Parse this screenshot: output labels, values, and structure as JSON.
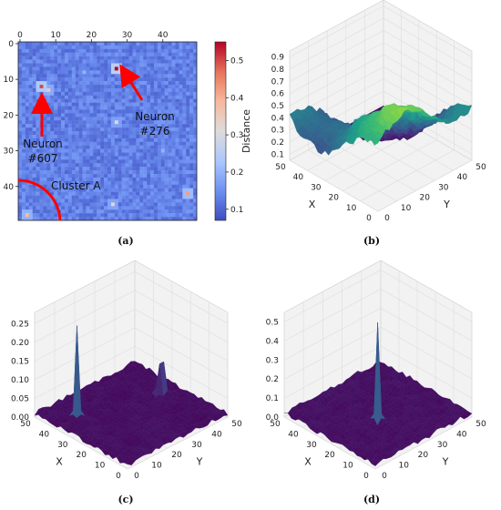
{
  "chart_data": [
    {
      "panel": "(a)",
      "type": "heatmap",
      "x_ticks": [
        "0",
        "10",
        "20",
        "30",
        "40"
      ],
      "y_ticks": [
        "0",
        "10",
        "20",
        "30",
        "40"
      ],
      "grid_size": 50,
      "colorbar": {
        "label": "Distance",
        "ticks": [
          "0.1",
          "0.2",
          "0.3",
          "0.4",
          "0.5"
        ],
        "range": [
          0.07,
          0.55
        ],
        "colormap": [
          "#3b4cc0",
          "#6f92f3",
          "#aac7fd",
          "#dddcdc",
          "#f7b89c",
          "#e7745b",
          "#b40426"
        ]
      },
      "highlights": [
        {
          "x": 27,
          "y": 7,
          "value": 0.55
        },
        {
          "x": 6,
          "y": 12,
          "value": 0.5
        },
        {
          "x": 8,
          "y": 13,
          "value": 0.35
        },
        {
          "x": 27,
          "y": 22,
          "value": 0.3
        },
        {
          "x": 47,
          "y": 42,
          "value": 0.42
        },
        {
          "x": 26,
          "y": 45,
          "value": 0.32
        },
        {
          "x": 2,
          "y": 48,
          "value": 0.38
        },
        {
          "x": 40,
          "y": 30,
          "value": 0.2
        },
        {
          "x": 18,
          "y": 8,
          "value": 0.2
        }
      ],
      "annotations": [
        {
          "text_lines": [
            "Neuron",
            "#607"
          ],
          "target": [
            6,
            12
          ]
        },
        {
          "text_lines": [
            "Neuron",
            "#276"
          ],
          "target": [
            27,
            7
          ]
        },
        {
          "text_lines": [
            "Cluster A"
          ],
          "target": [
            0,
            50
          ]
        }
      ],
      "arrow_color": "#ff0000"
    },
    {
      "panel": "(b)",
      "type": "surface",
      "x_label": "X",
      "y_label": "Y",
      "x_ticks": [
        "0",
        "10",
        "20",
        "30",
        "40",
        "50"
      ],
      "y_ticks": [
        "0",
        "10",
        "20",
        "30",
        "40",
        "50"
      ],
      "z_ticks": [
        "0.1",
        "0.2",
        "0.3",
        "0.4",
        "0.5",
        "0.6",
        "0.7",
        "0.8",
        "0.9"
      ],
      "z_range": [
        0.05,
        0.95
      ],
      "colormap": "viridis"
    },
    {
      "panel": "(c)",
      "type": "surface",
      "x_label": "X",
      "y_label": "Y",
      "x_ticks": [
        "0",
        "10",
        "20",
        "30",
        "40",
        "50"
      ],
      "y_ticks": [
        "0",
        "10",
        "20",
        "30",
        "40",
        "50"
      ],
      "z_ticks": [
        "0.00",
        "0.05",
        "0.10",
        "0.15",
        "0.20",
        "0.25"
      ],
      "z_range": [
        0,
        0.28
      ],
      "peaks": [
        {
          "x": 38,
          "y": 10,
          "value": 0.25
        },
        {
          "x": 28,
          "y": 43,
          "value": 0.17
        }
      ],
      "colormap": "viridis"
    },
    {
      "panel": "(d)",
      "type": "surface",
      "x_label": "X",
      "y_label": "Y",
      "x_ticks": [
        "0",
        "10",
        "20",
        "30",
        "40",
        "50"
      ],
      "y_ticks": [
        "0",
        "10",
        "20",
        "30",
        "40",
        "50"
      ],
      "z_ticks": [
        "0.0",
        "0.1",
        "0.2",
        "0.3",
        "0.4",
        "0.5"
      ],
      "z_range": [
        0,
        0.55
      ],
      "peaks": [
        {
          "x": 22,
          "y": 22,
          "value": 0.53
        }
      ],
      "colormap": "viridis"
    }
  ]
}
